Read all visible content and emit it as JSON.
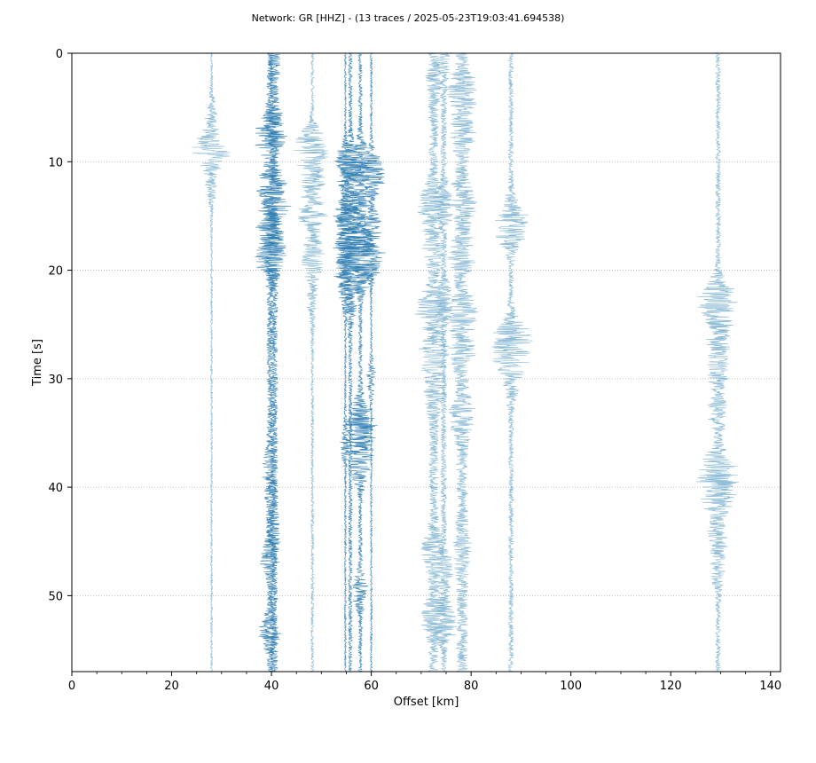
{
  "chart_data": {
    "type": "line",
    "title": "Network: GR [HHZ] - (13 traces / 2025-05-23T19:03:41.694538)",
    "xlabel": "Offset [km]",
    "ylabel": "Time [s]",
    "xlim": [
      0,
      142
    ],
    "ylim": [
      57,
      0
    ],
    "y_inverted": true,
    "xticks": [
      0,
      20,
      40,
      60,
      80,
      100,
      120,
      140
    ],
    "yticks": [
      0,
      10,
      20,
      30,
      40,
      50
    ],
    "grid": "horizontal-dotted",
    "colors": {
      "trace_dark": "#2b7bb0",
      "trace_light": "#7fb4d1"
    },
    "series": [
      {
        "offset": 28.0,
        "events": [
          [
            5.5,
            1.0
          ],
          [
            9.0,
            4.5
          ],
          [
            12.5,
            1.0
          ]
        ],
        "base": 0.2,
        "tone": "light"
      },
      {
        "offset": 39.7,
        "events": [
          [
            7.5,
            4.0
          ],
          [
            12.0,
            3.5
          ],
          [
            16.5,
            2.5
          ],
          [
            19.0,
            3.0
          ],
          [
            38.0,
            1.0
          ],
          [
            40.5,
            0.8
          ],
          [
            46.2,
            2.0
          ],
          [
            53.5,
            2.0
          ]
        ],
        "base": 0.6,
        "tone": "dark"
      },
      {
        "offset": 40.5,
        "events": [
          [
            1.0,
            0.8
          ],
          [
            6.5,
            1.5
          ],
          [
            14.0,
            3.0
          ],
          [
            18.5,
            2.5
          ],
          [
            44.0,
            1.0
          ]
        ],
        "base": 0.8,
        "tone": "dark"
      },
      {
        "offset": 48.2,
        "events": [
          [
            8.5,
            4.0
          ],
          [
            11.5,
            2.5
          ],
          [
            15.0,
            3.0
          ],
          [
            19.0,
            3.0
          ],
          [
            23.0,
            1.0
          ]
        ],
        "base": 0.3,
        "tone": "light"
      },
      {
        "offset": 54.8,
        "events": [
          [
            10.5,
            3.0
          ],
          [
            15.0,
            2.5
          ],
          [
            18.5,
            2.0
          ],
          [
            22.0,
            2.0
          ],
          [
            36.0,
            1.0
          ]
        ],
        "base": 0.2,
        "tone": "dark"
      },
      {
        "offset": 55.8,
        "events": [
          [
            10.0,
            3.0
          ],
          [
            14.5,
            3.0
          ],
          [
            17.5,
            4.0
          ],
          [
            20.5,
            3.0
          ],
          [
            23.5,
            1.0
          ]
        ],
        "base": 0.4,
        "tone": "dark"
      },
      {
        "offset": 57.8,
        "events": [
          [
            10.0,
            2.5
          ],
          [
            13.5,
            2.0
          ],
          [
            17.5,
            3.0
          ],
          [
            20.0,
            3.5
          ],
          [
            33.5,
            2.0
          ],
          [
            35.0,
            2.5
          ],
          [
            38.0,
            3.0
          ],
          [
            49.5,
            1.5
          ]
        ],
        "base": 0.4,
        "tone": "dark"
      },
      {
        "offset": 60.0,
        "events": [
          [
            11.0,
            4.0
          ],
          [
            16.0,
            2.5
          ],
          [
            19.0,
            3.0
          ],
          [
            30.0,
            1.0
          ]
        ],
        "base": 0.2,
        "tone": "dark"
      },
      {
        "offset": 72.5,
        "events": [
          [
            3.0,
            1.0
          ],
          [
            14.0,
            3.0
          ],
          [
            18.0,
            2.0
          ],
          [
            23.5,
            3.5
          ],
          [
            27.5,
            2.5
          ],
          [
            31.0,
            2.0
          ],
          [
            46.0,
            2.0
          ],
          [
            52.0,
            2.5
          ]
        ],
        "base": 1.0,
        "tone": "light"
      },
      {
        "offset": 74.5,
        "events": [
          [
            1.2,
            1.0
          ],
          [
            14.0,
            2.0
          ],
          [
            23.0,
            2.0
          ],
          [
            47.5,
            2.0
          ],
          [
            52.5,
            3.0
          ]
        ],
        "base": 0.6,
        "tone": "light"
      },
      {
        "offset": 78.2,
        "events": [
          [
            3.5,
            3.0
          ],
          [
            7.5,
            2.0
          ],
          [
            13.5,
            2.5
          ],
          [
            18.5,
            2.0
          ],
          [
            24.0,
            2.5
          ],
          [
            27.5,
            2.0
          ],
          [
            33.5,
            2.0
          ],
          [
            46.0,
            1.0
          ]
        ],
        "base": 1.2,
        "tone": "light"
      },
      {
        "offset": 88.0,
        "events": [
          [
            15.0,
            2.0
          ],
          [
            16.5,
            3.0
          ],
          [
            26.0,
            4.0
          ],
          [
            28.5,
            3.0
          ],
          [
            31.0,
            1.0
          ]
        ],
        "base": 0.5,
        "tone": "light"
      },
      {
        "offset": 129.5,
        "events": [
          [
            22.5,
            4.0
          ],
          [
            25.5,
            3.0
          ],
          [
            29.0,
            2.5
          ],
          [
            33.0,
            2.0
          ],
          [
            38.5,
            4.5
          ],
          [
            41.0,
            3.0
          ],
          [
            44.5,
            2.0
          ],
          [
            47.5,
            1.5
          ]
        ],
        "base": 0.5,
        "tone": "light"
      }
    ]
  }
}
